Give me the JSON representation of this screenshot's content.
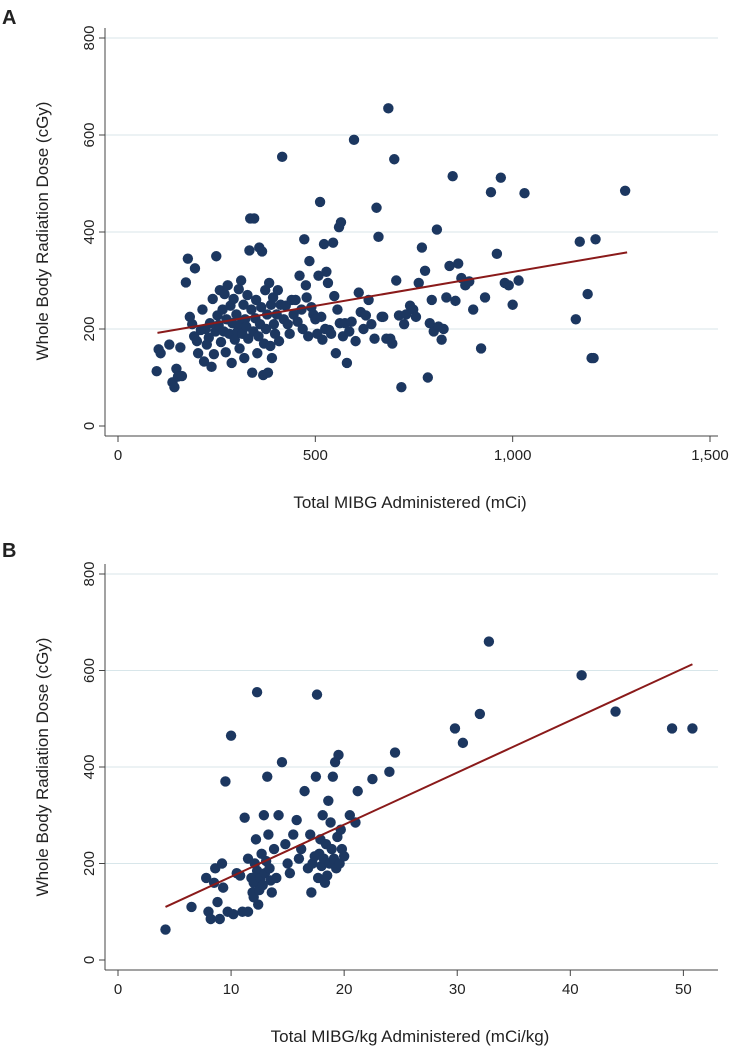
{
  "colors": {
    "point": "#1c3760",
    "fit_line": "#8a1a1a",
    "grid": "#d8e6ea",
    "axis": "#444444",
    "text": "#222222"
  },
  "chart_data": [
    {
      "type": "scatter",
      "panel_label": "A",
      "xlabel": "Total MIBG Administered (mCi)",
      "ylabel": "Whole Body Radiation Dose (cGy)",
      "xlim": [
        0,
        1500
      ],
      "ylim": [
        0,
        800
      ],
      "xticks": [
        0,
        500,
        1000,
        1500
      ],
      "xtick_labels": [
        "0",
        "500",
        "1,000",
        "1,500"
      ],
      "yticks": [
        0,
        200,
        400,
        600,
        800
      ],
      "ytick_labels": [
        "0",
        "200",
        "400",
        "600",
        "800"
      ],
      "grid": "horizontal",
      "fit_line": {
        "x": [
          100,
          1290
        ],
        "y": [
          192,
          358
        ]
      },
      "points": [
        [
          98,
          113
        ],
        [
          103,
          158
        ],
        [
          108,
          150
        ],
        [
          130,
          168
        ],
        [
          138,
          90
        ],
        [
          143,
          80
        ],
        [
          148,
          118
        ],
        [
          152,
          102
        ],
        [
          158,
          162
        ],
        [
          162,
          103
        ],
        [
          172,
          296
        ],
        [
          177,
          345
        ],
        [
          182,
          225
        ],
        [
          188,
          210
        ],
        [
          193,
          185
        ],
        [
          195,
          325
        ],
        [
          200,
          175
        ],
        [
          203,
          150
        ],
        [
          210,
          198
        ],
        [
          214,
          240
        ],
        [
          218,
          133
        ],
        [
          222,
          200
        ],
        [
          225,
          168
        ],
        [
          230,
          182
        ],
        [
          233,
          212
        ],
        [
          237,
          122
        ],
        [
          240,
          262
        ],
        [
          243,
          148
        ],
        [
          247,
          195
        ],
        [
          249,
          350
        ],
        [
          252,
          228
        ],
        [
          255,
          208
        ],
        [
          258,
          280
        ],
        [
          261,
          173
        ],
        [
          265,
          240
        ],
        [
          268,
          195
        ],
        [
          270,
          272
        ],
        [
          273,
          152
        ],
        [
          275,
          220
        ],
        [
          278,
          290
        ],
        [
          282,
          190
        ],
        [
          285,
          248
        ],
        [
          288,
          130
        ],
        [
          290,
          212
        ],
        [
          293,
          262
        ],
        [
          296,
          178
        ],
        [
          300,
          230
        ],
        [
          303,
          195
        ],
        [
          306,
          282
        ],
        [
          308,
          160
        ],
        [
          310,
          210
        ],
        [
          312,
          300
        ],
        [
          315,
          190
        ],
        [
          318,
          250
        ],
        [
          320,
          140
        ],
        [
          322,
          220
        ],
        [
          325,
          205
        ],
        [
          328,
          270
        ],
        [
          330,
          180
        ],
        [
          333,
          362
        ],
        [
          335,
          428
        ],
        [
          338,
          240
        ],
        [
          340,
          110
        ],
        [
          343,
          195
        ],
        [
          345,
          428
        ],
        [
          348,
          222
        ],
        [
          350,
          260
        ],
        [
          353,
          150
        ],
        [
          356,
          185
        ],
        [
          358,
          368
        ],
        [
          360,
          210
        ],
        [
          363,
          245
        ],
        [
          365,
          360
        ],
        [
          368,
          105
        ],
        [
          370,
          170
        ],
        [
          373,
          280
        ],
        [
          375,
          200
        ],
        [
          378,
          230
        ],
        [
          380,
          110
        ],
        [
          383,
          295
        ],
        [
          386,
          165
        ],
        [
          388,
          250
        ],
        [
          390,
          140
        ],
        [
          393,
          265
        ],
        [
          395,
          210
        ],
        [
          398,
          190
        ],
        [
          402,
          230
        ],
        [
          405,
          280
        ],
        [
          408,
          175
        ],
        [
          412,
          250
        ],
        [
          416,
          555
        ],
        [
          420,
          220
        ],
        [
          425,
          248
        ],
        [
          430,
          210
        ],
        [
          435,
          190
        ],
        [
          440,
          260
        ],
        [
          445,
          230
        ],
        [
          450,
          260
        ],
        [
          455,
          215
        ],
        [
          460,
          310
        ],
        [
          465,
          240
        ],
        [
          468,
          200
        ],
        [
          472,
          385
        ],
        [
          476,
          290
        ],
        [
          478,
          265
        ],
        [
          482,
          185
        ],
        [
          485,
          340
        ],
        [
          490,
          245
        ],
        [
          495,
          230
        ],
        [
          500,
          220
        ],
        [
          505,
          190
        ],
        [
          508,
          310
        ],
        [
          512,
          462
        ],
        [
          515,
          225
        ],
        [
          518,
          178
        ],
        [
          522,
          375
        ],
        [
          525,
          200
        ],
        [
          528,
          318
        ],
        [
          532,
          295
        ],
        [
          535,
          198
        ],
        [
          540,
          190
        ],
        [
          545,
          378
        ],
        [
          548,
          268
        ],
        [
          552,
          150
        ],
        [
          556,
          240
        ],
        [
          560,
          410
        ],
        [
          562,
          212
        ],
        [
          565,
          420
        ],
        [
          570,
          185
        ],
        [
          575,
          212
        ],
        [
          580,
          130
        ],
        [
          586,
          195
        ],
        [
          592,
          215
        ],
        [
          598,
          590
        ],
        [
          602,
          175
        ],
        [
          610,
          275
        ],
        [
          615,
          235
        ],
        [
          622,
          200
        ],
        [
          628,
          228
        ],
        [
          635,
          260
        ],
        [
          642,
          210
        ],
        [
          650,
          180
        ],
        [
          655,
          450
        ],
        [
          660,
          390
        ],
        [
          668,
          225
        ],
        [
          672,
          225
        ],
        [
          680,
          180
        ],
        [
          685,
          655
        ],
        [
          690,
          180
        ],
        [
          695,
          170
        ],
        [
          700,
          550
        ],
        [
          705,
          300
        ],
        [
          712,
          228
        ],
        [
          718,
          80
        ],
        [
          725,
          210
        ],
        [
          730,
          230
        ],
        [
          740,
          248
        ],
        [
          748,
          240
        ],
        [
          755,
          225
        ],
        [
          762,
          295
        ],
        [
          770,
          368
        ],
        [
          778,
          320
        ],
        [
          785,
          100
        ],
        [
          790,
          212
        ],
        [
          795,
          260
        ],
        [
          800,
          195
        ],
        [
          808,
          405
        ],
        [
          812,
          205
        ],
        [
          820,
          178
        ],
        [
          825,
          200
        ],
        [
          832,
          265
        ],
        [
          840,
          330
        ],
        [
          848,
          515
        ],
        [
          855,
          258
        ],
        [
          862,
          335
        ],
        [
          870,
          305
        ],
        [
          880,
          290
        ],
        [
          890,
          298
        ],
        [
          900,
          240
        ],
        [
          920,
          160
        ],
        [
          930,
          265
        ],
        [
          945,
          482
        ],
        [
          960,
          355
        ],
        [
          970,
          512
        ],
        [
          980,
          295
        ],
        [
          990,
          290
        ],
        [
          1000,
          250
        ],
        [
          1015,
          300
        ],
        [
          1030,
          480
        ],
        [
          1160,
          220
        ],
        [
          1170,
          380
        ],
        [
          1190,
          272
        ],
        [
          1200,
          140
        ],
        [
          1205,
          140
        ],
        [
          1210,
          385
        ],
        [
          1285,
          485
        ]
      ]
    },
    {
      "type": "scatter",
      "panel_label": "B",
      "xlabel": "Total MIBG/kg Administered (mCi/kg)",
      "ylabel": "Whole Body Radiation Dose (cGy)",
      "xlim": [
        0,
        52
      ],
      "ylim": [
        0,
        800
      ],
      "xticks": [
        0,
        10,
        20,
        30,
        40,
        50
      ],
      "xtick_labels": [
        "0",
        "10",
        "20",
        "30",
        "40",
        "50"
      ],
      "yticks": [
        0,
        200,
        400,
        600,
        800
      ],
      "ytick_labels": [
        "0",
        "200",
        "400",
        "600",
        "800"
      ],
      "grid": "horizontal",
      "fit_line": {
        "x": [
          4.2,
          50.8
        ],
        "y": [
          110,
          613
        ]
      },
      "points": [
        [
          4.2,
          63
        ],
        [
          6.5,
          110
        ],
        [
          7.8,
          170
        ],
        [
          8.0,
          100
        ],
        [
          8.2,
          85
        ],
        [
          8.5,
          160
        ],
        [
          8.6,
          190
        ],
        [
          8.8,
          120
        ],
        [
          9.0,
          85
        ],
        [
          9.2,
          200
        ],
        [
          9.3,
          150
        ],
        [
          9.5,
          370
        ],
        [
          9.7,
          100
        ],
        [
          10.0,
          465
        ],
        [
          10.2,
          95
        ],
        [
          10.5,
          180
        ],
        [
          10.8,
          175
        ],
        [
          11.0,
          100
        ],
        [
          11.2,
          295
        ],
        [
          11.5,
          100
        ],
        [
          11.5,
          210
        ],
        [
          11.8,
          170
        ],
        [
          11.9,
          140
        ],
        [
          12.0,
          160
        ],
        [
          12.0,
          130
        ],
        [
          12.1,
          200
        ],
        [
          12.2,
          250
        ],
        [
          12.3,
          555
        ],
        [
          12.3,
          185
        ],
        [
          12.4,
          115
        ],
        [
          12.5,
          145
        ],
        [
          12.6,
          170
        ],
        [
          12.7,
          220
        ],
        [
          12.8,
          155
        ],
        [
          12.9,
          300
        ],
        [
          13.0,
          180
        ],
        [
          13.1,
          205
        ],
        [
          13.2,
          380
        ],
        [
          13.3,
          260
        ],
        [
          13.4,
          190
        ],
        [
          13.5,
          165
        ],
        [
          13.6,
          140
        ],
        [
          13.8,
          230
        ],
        [
          14.0,
          170
        ],
        [
          14.2,
          300
        ],
        [
          14.5,
          410
        ],
        [
          14.8,
          240
        ],
        [
          15.0,
          200
        ],
        [
          15.2,
          180
        ],
        [
          15.5,
          260
        ],
        [
          15.8,
          290
        ],
        [
          16.0,
          210
        ],
        [
          16.2,
          230
        ],
        [
          16.5,
          350
        ],
        [
          16.8,
          190
        ],
        [
          17.0,
          260
        ],
        [
          17.1,
          140
        ],
        [
          17.2,
          200
        ],
        [
          17.4,
          215
        ],
        [
          17.5,
          380
        ],
        [
          17.6,
          550
        ],
        [
          17.7,
          170
        ],
        [
          17.8,
          220
        ],
        [
          17.9,
          250
        ],
        [
          18.0,
          195
        ],
        [
          18.1,
          300
        ],
        [
          18.2,
          210
        ],
        [
          18.3,
          160
        ],
        [
          18.4,
          240
        ],
        [
          18.5,
          175
        ],
        [
          18.6,
          330
        ],
        [
          18.7,
          200
        ],
        [
          18.8,
          285
        ],
        [
          18.9,
          230
        ],
        [
          19.0,
          380
        ],
        [
          19.1,
          210
        ],
        [
          19.2,
          410
        ],
        [
          19.3,
          190
        ],
        [
          19.4,
          255
        ],
        [
          19.5,
          425
        ],
        [
          19.6,
          200
        ],
        [
          19.7,
          270
        ],
        [
          19.8,
          230
        ],
        [
          20.0,
          215
        ],
        [
          20.5,
          300
        ],
        [
          21.0,
          285
        ],
        [
          21.2,
          350
        ],
        [
          22.5,
          375
        ],
        [
          24.0,
          390
        ],
        [
          24.5,
          430
        ],
        [
          29.8,
          480
        ],
        [
          30.5,
          450
        ],
        [
          32.0,
          510
        ],
        [
          32.8,
          660
        ],
        [
          41.0,
          590
        ],
        [
          44.0,
          515
        ],
        [
          49.0,
          480
        ],
        [
          50.8,
          480
        ]
      ]
    }
  ]
}
